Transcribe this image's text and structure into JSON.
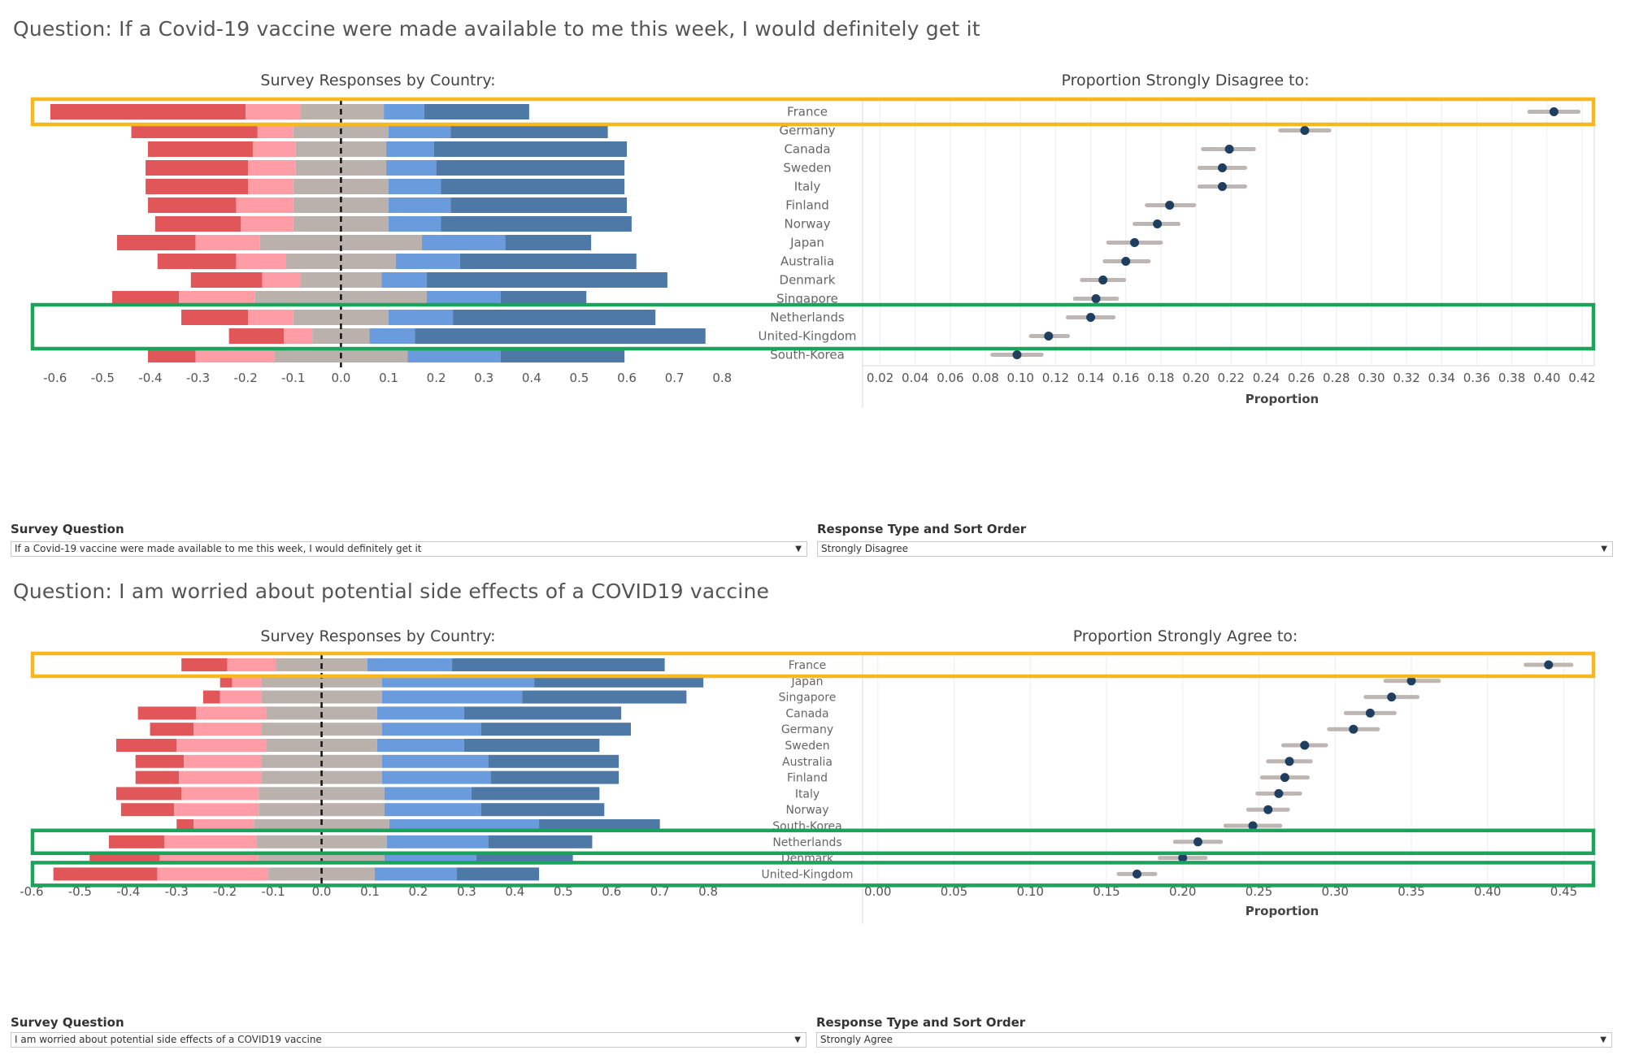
{
  "colors": {
    "strongly_disagree": "#e15759",
    "disagree": "#ff9da7",
    "neutral": "#bab0ac",
    "agree": "#6a9bdc",
    "strongly_agree": "#4e79a7",
    "dot": "#1f3f60",
    "ci": "#bdb6b2",
    "highlight_orange": "#f6b81e",
    "highlight_green": "#1aa35a",
    "grid": "#eeeeee",
    "axis_text": "#555555"
  },
  "panels": [
    {
      "question_title": "Question: If a Covid-19 vaccine were made available to me this week, I would definitely get it",
      "left_title": "Survey Responses by Country:",
      "right_title": "Proportion Strongly Disagree to:",
      "right_axis_label": "Proportion",
      "filters": {
        "survey_question_label": "Survey Question",
        "survey_question_value": "If a Covid-19 vaccine were made available to me this week, I would definitely get it",
        "response_type_label": "Response Type and Sort Order",
        "response_type_value": "Strongly Disagree"
      }
    },
    {
      "question_title": "Question: I am worried about potential side effects of a COVID19 vaccine",
      "left_title": "Survey Responses by Country:",
      "right_title": "Proportion Strongly Agree to:",
      "right_axis_label": "Proportion",
      "filters": {
        "survey_question_label": "Survey Question",
        "survey_question_value": "I am worried about potential side effects of a COVID19 vaccine",
        "response_type_label": "Response Type and Sort Order",
        "response_type_value": "Strongly Agree"
      }
    }
  ],
  "chart_data": [
    {
      "type": "bar",
      "subtype": "diverging-stacked-bar",
      "title": "Survey Responses by Country:",
      "categories": [
        "France",
        "Germany",
        "Canada",
        "Sweden",
        "Italy",
        "Finland",
        "Norway",
        "Japan",
        "Australia",
        "Denmark",
        "Singapore",
        "Netherlands",
        "United-Kingdom",
        "South-Korea"
      ],
      "segment_order": [
        "Strongly Disagree",
        "Disagree",
        "Neutral",
        "Agree",
        "Strongly Agree"
      ],
      "segments": [
        [
          -0.61,
          -0.2,
          -0.2,
          -0.085,
          -0.085,
          0.09,
          0.09,
          0.175,
          0.175,
          0.395
        ],
        [
          -0.44,
          -0.175,
          -0.175,
          -0.1,
          -0.1,
          0.1,
          0.1,
          0.23,
          0.23,
          0.56
        ],
        [
          -0.405,
          -0.185,
          -0.185,
          -0.095,
          -0.095,
          0.095,
          0.095,
          0.195,
          0.195,
          0.6
        ],
        [
          -0.41,
          -0.195,
          -0.195,
          -0.095,
          -0.095,
          0.095,
          0.095,
          0.2,
          0.2,
          0.595
        ],
        [
          -0.41,
          -0.195,
          -0.195,
          -0.1,
          -0.1,
          0.1,
          0.1,
          0.21,
          0.21,
          0.595
        ],
        [
          -0.405,
          -0.22,
          -0.22,
          -0.1,
          -0.1,
          0.1,
          0.1,
          0.23,
          0.23,
          0.6
        ],
        [
          -0.39,
          -0.21,
          -0.21,
          -0.1,
          -0.1,
          0.1,
          0.1,
          0.21,
          0.21,
          0.61
        ],
        [
          -0.47,
          -0.305,
          -0.305,
          -0.17,
          -0.17,
          0.17,
          0.17,
          0.345,
          0.345,
          0.525
        ],
        [
          -0.385,
          -0.22,
          -0.22,
          -0.115,
          -0.115,
          0.115,
          0.115,
          0.25,
          0.25,
          0.62
        ],
        [
          -0.315,
          -0.165,
          -0.165,
          -0.085,
          -0.085,
          0.085,
          0.085,
          0.18,
          0.18,
          0.685
        ],
        [
          -0.48,
          -0.34,
          -0.34,
          -0.18,
          -0.18,
          0.18,
          0.18,
          0.335,
          0.335,
          0.515
        ],
        [
          -0.335,
          -0.195,
          -0.195,
          -0.1,
          -0.1,
          0.1,
          0.1,
          0.235,
          0.235,
          0.66
        ],
        [
          -0.235,
          -0.12,
          -0.12,
          -0.06,
          -0.06,
          0.06,
          0.06,
          0.155,
          0.155,
          0.765
        ],
        [
          -0.405,
          -0.305,
          -0.305,
          -0.14,
          -0.14,
          0.14,
          0.14,
          0.335,
          0.335,
          0.595
        ]
      ],
      "xlim": [
        -0.62,
        0.82
      ],
      "xticks": [
        -0.6,
        -0.5,
        -0.4,
        -0.3,
        -0.2,
        -0.1,
        0.0,
        0.1,
        0.2,
        0.3,
        0.4,
        0.5,
        0.6,
        0.7,
        0.8
      ],
      "xtick_labels": [
        "-0.6",
        "-0.5",
        "-0.4",
        "-0.3",
        "-0.2",
        "-0.1",
        "0.0",
        "0.1",
        "0.2",
        "0.3",
        "0.4",
        "0.5",
        "0.6",
        "0.7",
        "0.8"
      ],
      "highlight_orange": [
        "France"
      ],
      "highlight_green": [
        "Netherlands",
        "United-Kingdom"
      ]
    },
    {
      "type": "scatter",
      "subtype": "dot-with-interval",
      "title": "Proportion Strongly Disagree to:",
      "xlabel": "Proportion",
      "categories": [
        "France",
        "Germany",
        "Canada",
        "Sweden",
        "Italy",
        "Finland",
        "Norway",
        "Japan",
        "Australia",
        "Denmark",
        "Singapore",
        "Netherlands",
        "United-Kingdom",
        "South-Korea"
      ],
      "values": [
        0.404,
        0.262,
        0.219,
        0.215,
        0.215,
        0.185,
        0.178,
        0.165,
        0.16,
        0.147,
        0.143,
        0.14,
        0.116,
        0.098
      ],
      "lower": [
        0.39,
        0.248,
        0.204,
        0.202,
        0.202,
        0.172,
        0.165,
        0.15,
        0.148,
        0.135,
        0.131,
        0.127,
        0.106,
        0.084
      ],
      "upper": [
        0.418,
        0.276,
        0.233,
        0.228,
        0.228,
        0.199,
        0.19,
        0.18,
        0.173,
        0.159,
        0.155,
        0.153,
        0.127,
        0.112
      ],
      "xlim": [
        0.01,
        0.427
      ],
      "xticks": [
        0.02,
        0.04,
        0.06,
        0.08,
        0.1,
        0.12,
        0.14,
        0.16,
        0.18,
        0.2,
        0.22,
        0.24,
        0.26,
        0.28,
        0.3,
        0.32,
        0.34,
        0.36,
        0.38,
        0.4,
        0.42
      ],
      "xtick_labels": [
        "0.02",
        "0.04",
        "0.06",
        "0.08",
        "0.10",
        "0.12",
        "0.14",
        "0.16",
        "0.18",
        "0.20",
        "0.22",
        "0.24",
        "0.26",
        "0.28",
        "0.30",
        "0.32",
        "0.34",
        "0.36",
        "0.38",
        "0.40",
        "0.42"
      ]
    },
    {
      "type": "bar",
      "subtype": "diverging-stacked-bar",
      "title": "Survey Responses by Country:",
      "categories": [
        "France",
        "Japan",
        "Singapore",
        "Canada",
        "Germany",
        "Sweden",
        "Australia",
        "Finland",
        "Italy",
        "Norway",
        "South-Korea",
        "Netherlands",
        "Denmark",
        "United-Kingdom"
      ],
      "segment_order": [
        "Strongly Disagree",
        "Disagree",
        "Neutral",
        "Agree",
        "Strongly Agree"
      ],
      "segments": [
        [
          -0.29,
          -0.195,
          -0.195,
          -0.095,
          -0.095,
          0.095,
          0.095,
          0.27,
          0.27,
          0.71
        ],
        [
          -0.21,
          -0.185,
          -0.185,
          -0.125,
          -0.125,
          0.125,
          0.125,
          0.44,
          0.44,
          0.79
        ],
        [
          -0.245,
          -0.21,
          -0.21,
          -0.125,
          -0.125,
          0.125,
          0.125,
          0.415,
          0.415,
          0.755
        ],
        [
          -0.38,
          -0.26,
          -0.26,
          -0.115,
          -0.115,
          0.115,
          0.115,
          0.295,
          0.295,
          0.62
        ],
        [
          -0.355,
          -0.265,
          -0.265,
          -0.125,
          -0.125,
          0.125,
          0.125,
          0.33,
          0.33,
          0.64
        ],
        [
          -0.425,
          -0.3,
          -0.3,
          -0.115,
          -0.115,
          0.115,
          0.115,
          0.295,
          0.295,
          0.575
        ],
        [
          -0.385,
          -0.285,
          -0.285,
          -0.125,
          -0.125,
          0.125,
          0.125,
          0.345,
          0.345,
          0.615
        ],
        [
          -0.385,
          -0.295,
          -0.295,
          -0.125,
          -0.125,
          0.125,
          0.125,
          0.35,
          0.35,
          0.615
        ],
        [
          -0.425,
          -0.29,
          -0.29,
          -0.13,
          -0.13,
          0.13,
          0.13,
          0.31,
          0.31,
          0.575
        ],
        [
          -0.415,
          -0.305,
          -0.305,
          -0.13,
          -0.13,
          0.13,
          0.13,
          0.33,
          0.33,
          0.585
        ],
        [
          -0.3,
          -0.265,
          -0.265,
          -0.14,
          -0.14,
          0.14,
          0.14,
          0.45,
          0.45,
          0.7
        ],
        [
          -0.44,
          -0.325,
          -0.325,
          -0.135,
          -0.135,
          0.135,
          0.135,
          0.345,
          0.345,
          0.56
        ],
        [
          -0.48,
          -0.335,
          -0.335,
          -0.13,
          -0.13,
          0.13,
          0.13,
          0.32,
          0.32,
          0.52
        ],
        [
          -0.555,
          -0.34,
          -0.34,
          -0.11,
          -0.11,
          0.11,
          0.11,
          0.28,
          0.28,
          0.45
        ]
      ],
      "xlim": [
        -0.62,
        0.82
      ],
      "xticks": [
        -0.6,
        -0.5,
        -0.4,
        -0.3,
        -0.2,
        -0.1,
        0.0,
        0.1,
        0.2,
        0.3,
        0.4,
        0.5,
        0.6,
        0.7,
        0.8
      ],
      "xtick_labels": [
        "-0.6",
        "-0.5",
        "-0.4",
        "-0.3",
        "-0.2",
        "-0.1",
        "0.0",
        "0.1",
        "0.2",
        "0.3",
        "0.4",
        "0.5",
        "0.6",
        "0.7",
        "0.8"
      ],
      "highlight_orange": [
        "France"
      ],
      "highlight_green": [
        "Netherlands",
        "United-Kingdom"
      ]
    },
    {
      "type": "scatter",
      "subtype": "dot-with-interval",
      "title": "Proportion Strongly Agree to:",
      "xlabel": "Proportion",
      "categories": [
        "France",
        "Japan",
        "Singapore",
        "Canada",
        "Germany",
        "Sweden",
        "Australia",
        "Finland",
        "Italy",
        "Norway",
        "South-Korea",
        "Netherlands",
        "Denmark",
        "United-Kingdom"
      ],
      "values": [
        0.44,
        0.35,
        0.337,
        0.323,
        0.312,
        0.28,
        0.27,
        0.267,
        0.263,
        0.256,
        0.246,
        0.21,
        0.2,
        0.17
      ],
      "lower": [
        0.425,
        0.333,
        0.32,
        0.307,
        0.296,
        0.266,
        0.256,
        0.252,
        0.249,
        0.243,
        0.228,
        0.195,
        0.185,
        0.158
      ],
      "upper": [
        0.455,
        0.368,
        0.354,
        0.339,
        0.328,
        0.294,
        0.284,
        0.282,
        0.277,
        0.269,
        0.264,
        0.225,
        0.215,
        0.182
      ],
      "xlim": [
        -0.01,
        0.47
      ],
      "xticks": [
        0.0,
        0.05,
        0.1,
        0.15,
        0.2,
        0.25,
        0.3,
        0.35,
        0.4,
        0.45
      ],
      "xtick_labels": [
        "0.00",
        "0.05",
        "0.10",
        "0.15",
        "0.20",
        "0.25",
        "0.30",
        "0.35",
        "0.40",
        "0.45"
      ]
    }
  ]
}
